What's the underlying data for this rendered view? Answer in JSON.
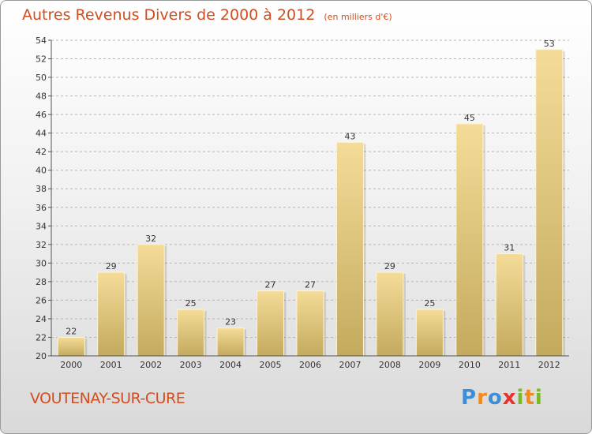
{
  "header": {
    "title": "Autres Revenus Divers de 2000 à 2012",
    "subtitle": "(en milliers d'€)"
  },
  "footer": {
    "location": "VOUTENAY-SUR-CURE",
    "logo": {
      "letters": [
        "P",
        "r",
        "o",
        "x",
        "i",
        "t",
        "i"
      ],
      "colors": [
        "#3a8fd8",
        "#f08a1c",
        "#3a8fd8",
        "#e8322b",
        "#7ab828",
        "#f08a1c",
        "#7ab828"
      ]
    }
  },
  "chart_data": {
    "type": "bar",
    "categories": [
      "2000",
      "2001",
      "2002",
      "2003",
      "2004",
      "2005",
      "2006",
      "2007",
      "2008",
      "2009",
      "2010",
      "2011",
      "2012"
    ],
    "values": [
      22,
      29,
      32,
      25,
      23,
      27,
      27,
      43,
      29,
      25,
      45,
      31,
      53
    ],
    "ylim": [
      20,
      54
    ],
    "yticks": [
      20,
      22,
      24,
      26,
      28,
      30,
      32,
      34,
      36,
      38,
      40,
      42,
      44,
      46,
      48,
      50,
      52,
      54
    ],
    "grid": true,
    "colors": {
      "bar_top": "#f4dc98",
      "bar_bottom": "#c4aa5e",
      "grid": "#b5b5b5",
      "title": "#d24d1f"
    }
  }
}
